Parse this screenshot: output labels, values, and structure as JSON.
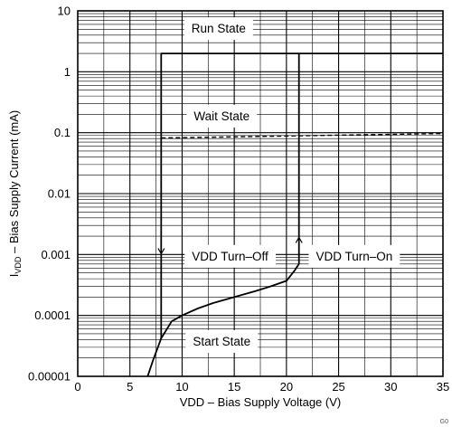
{
  "chart_data": {
    "type": "line",
    "title": "",
    "xlabel": "VDD – Bias Supply Voltage (V)",
    "ylabel_main": "I",
    "ylabel_sub": "VDD",
    "ylabel_rest": " – Bias Supply Current (mA)",
    "figure_id": "G0",
    "x_scale": "linear",
    "y_scale": "log",
    "xlim": [
      0,
      35
    ],
    "ylim": [
      1e-05,
      10
    ],
    "x_ticks": [
      0,
      5,
      10,
      15,
      20,
      25,
      30,
      35
    ],
    "x_tick_labels": [
      "0",
      "5",
      "10",
      "15",
      "20",
      "25",
      "30",
      "35"
    ],
    "y_ticks": [
      1e-05,
      0.0001,
      0.001,
      0.01,
      0.1,
      1,
      10
    ],
    "y_tick_labels": [
      "0.00001",
      "0.0001",
      "0.001",
      "0.01",
      "0.1",
      "1",
      "10"
    ],
    "grid": true,
    "series": [
      {
        "style": "solid",
        "x": [
          6.7,
          7.2,
          8.0,
          9.0,
          10.0,
          11.5,
          13.0,
          15.0,
          17.0,
          18.5,
          20.0,
          20.8,
          21.2,
          21.2,
          35
        ],
        "y": [
          1e-05,
          1.8e-05,
          4.2e-05,
          8e-05,
          0.0001,
          0.00013,
          0.00016,
          0.0002,
          0.00025,
          0.0003,
          0.00037,
          0.00055,
          0.0007,
          2.0,
          2.0
        ]
      },
      {
        "style": "solid",
        "x": [
          8.0,
          8.0,
          21.2
        ],
        "y": [
          4.2e-05,
          2.0,
          2.0
        ]
      },
      {
        "style": "dashed",
        "x": [
          8.0,
          35
        ],
        "y": [
          0.082,
          0.097
        ]
      }
    ],
    "annotations": [
      {
        "text": "Run State",
        "x": 13.5,
        "y": 5.2
      },
      {
        "text": "Wait State",
        "x": 13.8,
        "y": 0.19
      },
      {
        "text": "VDD Turn–Off",
        "x": 14.6,
        "y": 0.00095
      },
      {
        "text": "VDD Turn–On",
        "x": 26.5,
        "y": 0.00095
      },
      {
        "text": "Start State",
        "x": 13.8,
        "y": 3.8e-05
      }
    ],
    "arrows": [
      {
        "direction": "down",
        "x": 8.0,
        "y": 0.0014
      },
      {
        "direction": "up",
        "x": 21.2,
        "y": 0.0014
      }
    ]
  }
}
